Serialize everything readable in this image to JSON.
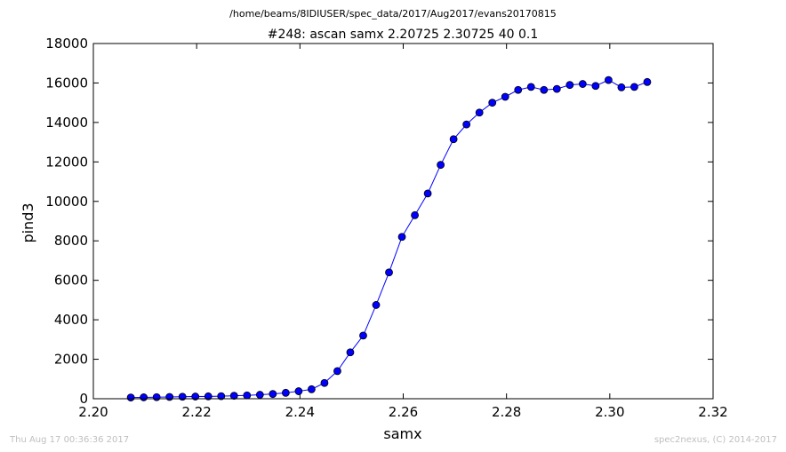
{
  "suptitle": "/home/beams/8IDIUSER/spec_data/2017/Aug2017/evans20170815",
  "footer": {
    "timestamp": "Thu Aug 17 00:36:36 2017",
    "credit": "spec2nexus, (C) 2014-2017"
  },
  "colors": {
    "series": "#0000ff",
    "axis": "#000000",
    "footer_text": "#bfbfbf"
  },
  "chart_data": {
    "type": "line",
    "title": "#248: ascan  samx 2.20725 2.30725  40 0.1",
    "xlabel": "samx",
    "ylabel": "pind3",
    "xlim": [
      2.2,
      2.32
    ],
    "ylim": [
      0,
      18000
    ],
    "xticks": [
      "2.20",
      "2.22",
      "2.24",
      "2.26",
      "2.28",
      "2.30",
      "2.32"
    ],
    "yticks": [
      "0",
      "2000",
      "4000",
      "6000",
      "8000",
      "10000",
      "12000",
      "14000",
      "16000",
      "18000"
    ],
    "grid": false,
    "marker": "circle",
    "series": [
      {
        "x": [
          2.20725,
          2.20975,
          2.21225,
          2.21475,
          2.21725,
          2.21975,
          2.22225,
          2.22475,
          2.22725,
          2.22975,
          2.23225,
          2.23475,
          2.23725,
          2.23975,
          2.24225,
          2.24475,
          2.24725,
          2.24975,
          2.25225,
          2.25475,
          2.25725,
          2.25975,
          2.26225,
          2.26475,
          2.26725,
          2.26975,
          2.27225,
          2.27475,
          2.27725,
          2.27975,
          2.28225,
          2.28475,
          2.28725,
          2.28975,
          2.29225,
          2.29475,
          2.29725,
          2.29975,
          2.30225,
          2.30475,
          2.30725
        ],
        "y": [
          60,
          70,
          80,
          90,
          100,
          110,
          120,
          130,
          150,
          170,
          200,
          240,
          300,
          380,
          480,
          800,
          1400,
          2350,
          3200,
          4750,
          6400,
          8200,
          9300,
          10400,
          11850,
          13150,
          13900,
          14500,
          15000,
          15300,
          15650,
          15800,
          15650,
          15700,
          15900,
          15950,
          15850,
          16150,
          15780,
          15800,
          16050
        ]
      }
    ]
  }
}
